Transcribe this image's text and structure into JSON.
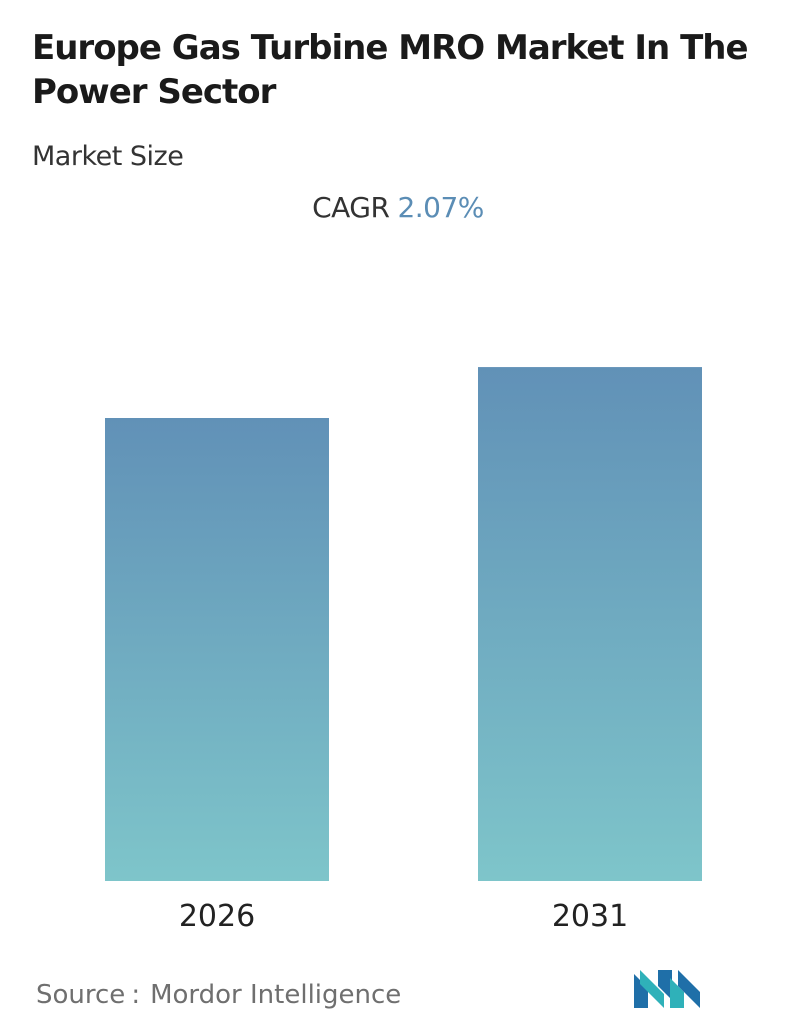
{
  "header": {
    "title": "Europe Gas Turbine MRO Market In The Power Sector",
    "subtitle": "Market Size",
    "cagr_label": "CAGR",
    "cagr_value": "2.07%"
  },
  "colors": {
    "bar_top": "#6191b7",
    "bar_bottom": "#7ec5ca",
    "cagr_value": "#5b8db5"
  },
  "chart_data": {
    "type": "bar",
    "title": "",
    "xlabel": "",
    "ylabel": "",
    "categories": [
      "2026",
      "2031"
    ],
    "values": [
      1.0,
      1.11
    ],
    "ylim": [
      0,
      1.3
    ],
    "grid": false,
    "note_values": "relative bar heights; no numeric axis printed"
  },
  "footer": {
    "source_label": "Source",
    "source_separator": ":",
    "source_name": "Mordor Intelligence",
    "logo_icon": "mordor-intelligence-logo-icon"
  }
}
